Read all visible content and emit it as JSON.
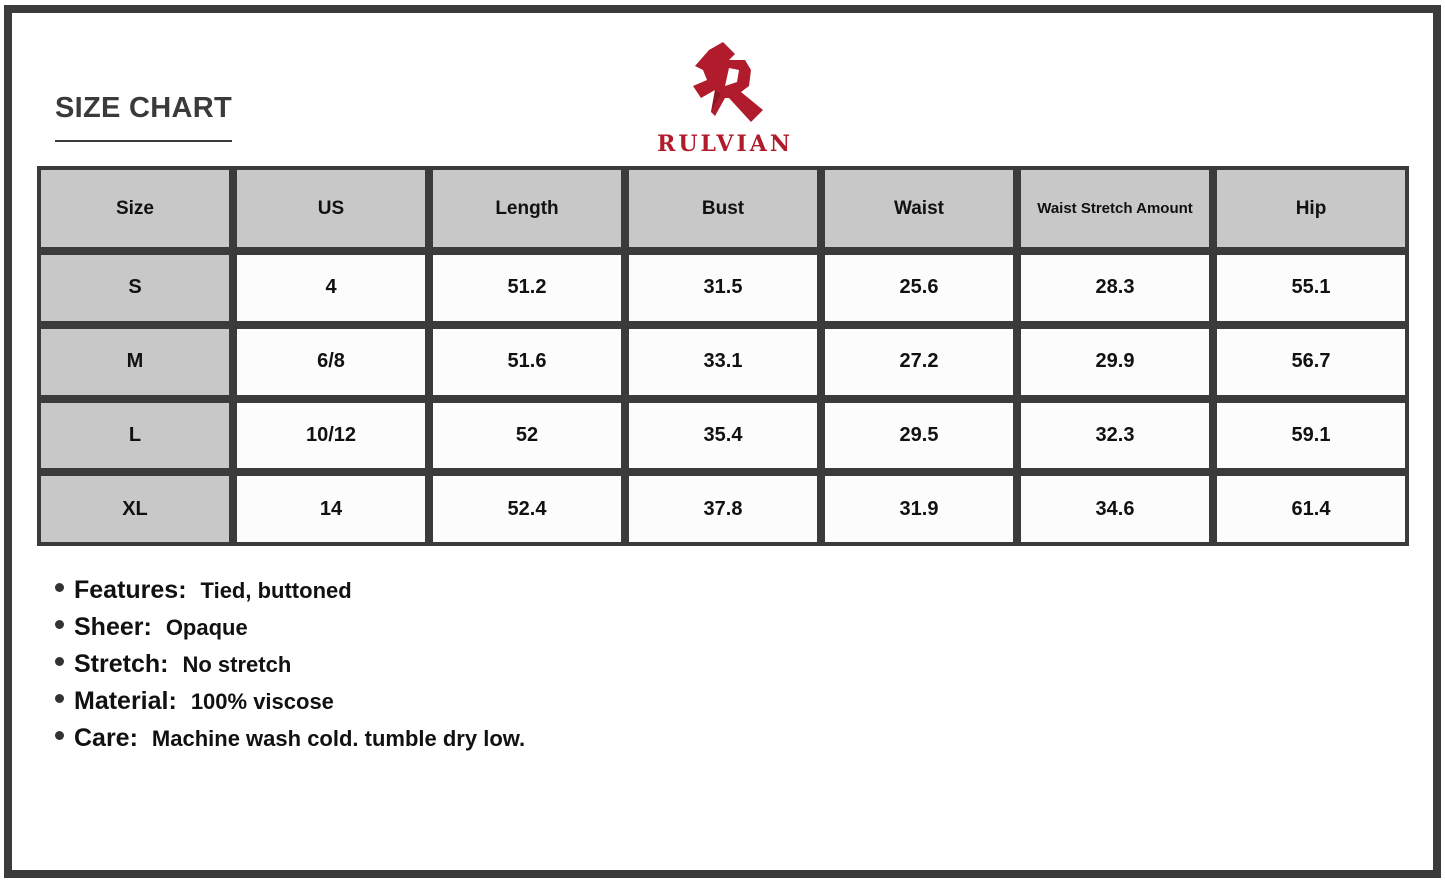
{
  "title": "SIZE CHART",
  "brand": {
    "name": "RULVIAN",
    "color": "#b01c2c"
  },
  "table": {
    "headers": [
      "Size",
      "US",
      "Length",
      "Bust",
      "Waist",
      "Waist Stretch Amount",
      "Hip"
    ],
    "rows": [
      [
        "S",
        "4",
        "51.2",
        "31.5",
        "25.6",
        "28.3",
        "55.1"
      ],
      [
        "M",
        "6/8",
        "51.6",
        "33.1",
        "27.2",
        "29.9",
        "56.7"
      ],
      [
        "L",
        "10/12",
        "52",
        "35.4",
        "29.5",
        "32.3",
        "59.1"
      ],
      [
        "XL",
        "14",
        "52.4",
        "37.8",
        "31.9",
        "34.6",
        "61.4"
      ]
    ]
  },
  "features": [
    {
      "label": "Features:",
      "value": "Tied, buttoned"
    },
    {
      "label": "Sheer:",
      "value": "Opaque"
    },
    {
      "label": "Stretch:",
      "value": "No stretch"
    },
    {
      "label": "Material:",
      "value": "100% viscose"
    },
    {
      "label": "Care:",
      "value": "Machine wash cold. tumble dry low."
    }
  ]
}
